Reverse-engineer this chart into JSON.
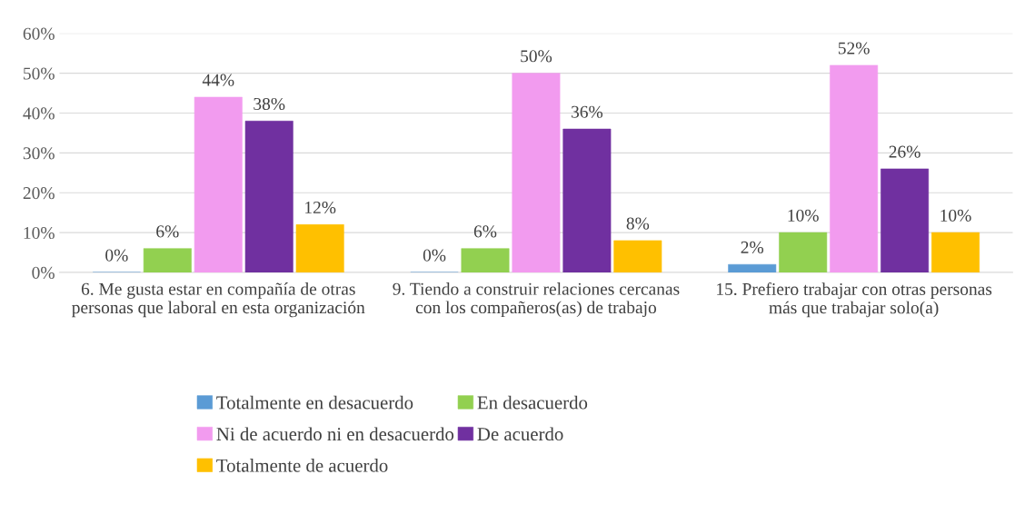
{
  "chart_data": {
    "type": "bar",
    "categories": [
      "6. Me gusta estar en compañía de otras personas que laboral en esta organización",
      "9. Tiendo a construir relaciones cercanas con los compañeros(as) de trabajo",
      "15. Prefiero trabajar con otras personas más que trabajar solo(a)"
    ],
    "series": [
      {
        "name": "Totalmente en desacuerdo",
        "color": "#5b9bd5",
        "values": [
          0,
          0,
          2
        ],
        "value_labels": [
          "0%",
          "0%",
          "2%"
        ]
      },
      {
        "name": "En desacuerdo",
        "color": "#92d050",
        "values": [
          6,
          6,
          10
        ],
        "value_labels": [
          "6%",
          "6%",
          "10%"
        ]
      },
      {
        "name": "Ni de acuerdo ni en desacuerdo",
        "color": "#f29bef",
        "values": [
          44,
          50,
          52
        ],
        "value_labels": [
          "44%",
          "50%",
          "52%"
        ]
      },
      {
        "name": "De acuerdo",
        "color": "#7030a0",
        "values": [
          38,
          36,
          26
        ],
        "value_labels": [
          "38%",
          "36%",
          "26%"
        ]
      },
      {
        "name": "Totalmente de acuerdo",
        "color": "#ffc000",
        "values": [
          12,
          8,
          10
        ],
        "value_labels": [
          "12%",
          "8%",
          "10%"
        ]
      }
    ],
    "ylim": [
      0,
      60
    ],
    "yticks": [
      {
        "value": 0,
        "label": "0%"
      },
      {
        "value": 10,
        "label": "10%"
      },
      {
        "value": 20,
        "label": "20%"
      },
      {
        "value": 30,
        "label": "30%"
      },
      {
        "value": 40,
        "label": "40%"
      },
      {
        "value": 50,
        "label": "50%"
      },
      {
        "value": 60,
        "label": "60%"
      }
    ],
    "grid": "y",
    "legend": "bottom"
  }
}
